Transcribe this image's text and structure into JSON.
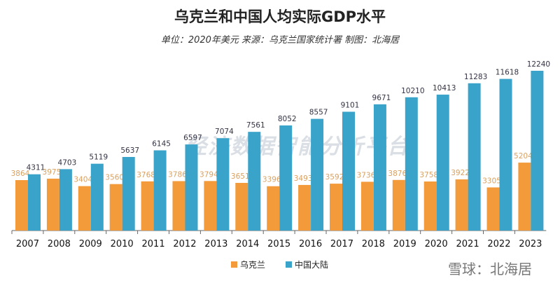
{
  "title": "乌克兰和中国人均实际GDP水平",
  "subtitle": "单位：2020年美元 来源：乌克兰国家统计署 制图：北海居",
  "watermark": "经济数据智能分析平台",
  "source_watermark": "雪球：北海居",
  "chart_data": {
    "type": "bar",
    "title": "乌克兰和中国人均实际GDP水平",
    "categories": [
      "2007",
      "2008",
      "2009",
      "2010",
      "2011",
      "2012",
      "2013",
      "2014",
      "2015",
      "2016",
      "2017",
      "2018",
      "2019",
      "2020",
      "2021",
      "2022",
      "2023"
    ],
    "series": [
      {
        "name": "乌克兰",
        "color": "#f39a3a",
        "values": [
          3864,
          3975,
          3404,
          3560,
          3768,
          3786,
          3794,
          3651,
          3396,
          3493,
          3592,
          3736,
          3876,
          3758,
          3922,
          3305,
          5204
        ]
      },
      {
        "name": "中国大陆",
        "color": "#3aa3c9",
        "values": [
          4311,
          4703,
          5119,
          5637,
          6145,
          6597,
          7074,
          7561,
          8052,
          8557,
          9101,
          9671,
          10210,
          10413,
          11283,
          11618,
          12240
        ]
      }
    ],
    "ylim": [
      0,
      12240
    ],
    "legend": "bottom",
    "grid": false
  }
}
